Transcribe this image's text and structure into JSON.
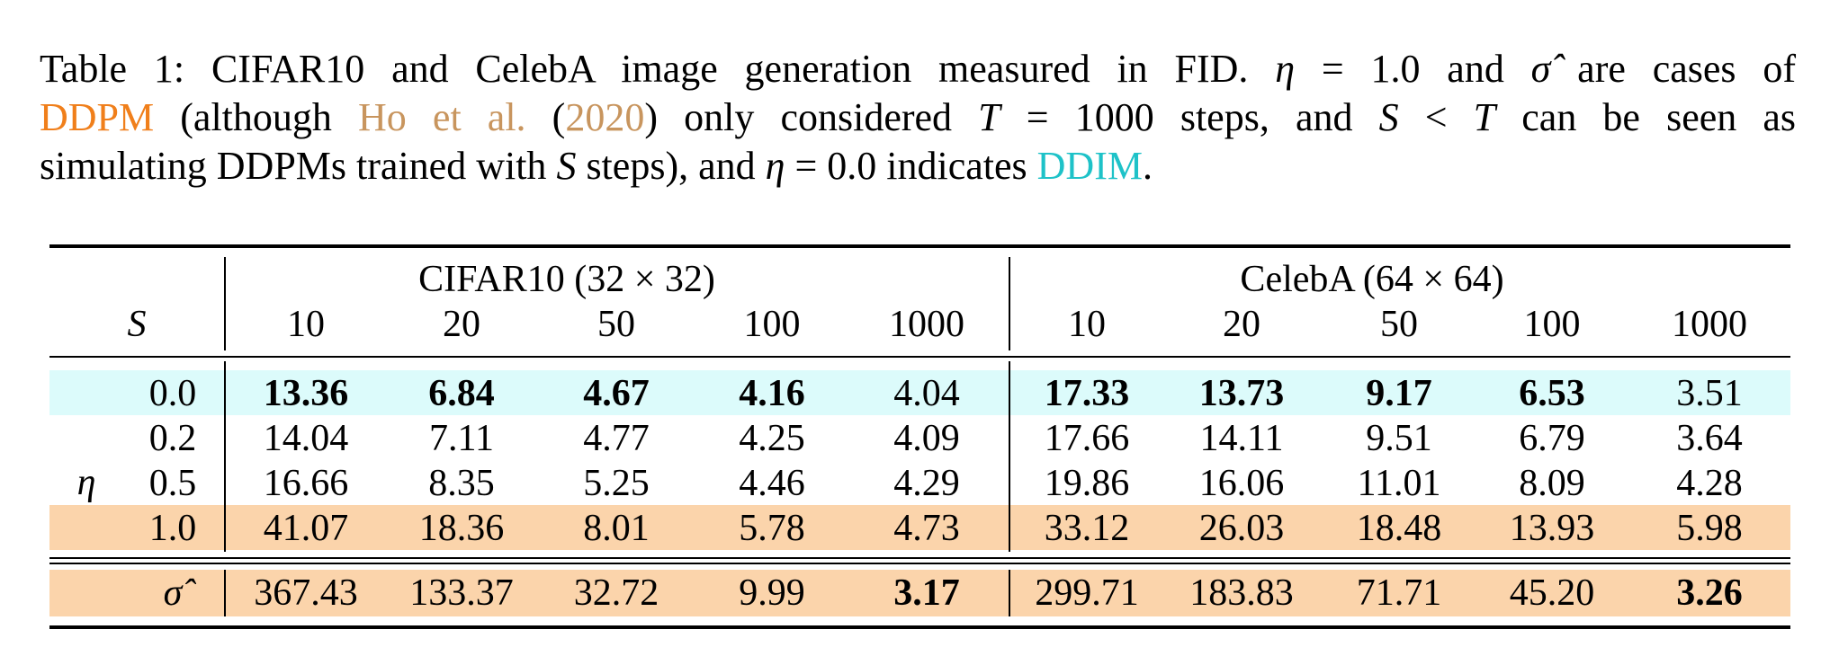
{
  "caption": {
    "l1_a": "Table 1: CIFAR10 and CelebA image generation measured in FID. ",
    "l1_eta": "η",
    "l1_b": " = 1.0 and ",
    "l1_sigma": "σ̂",
    "l1_c": " are cases of",
    "l2_ddpm": "DDPM",
    "l2_a": " (although ",
    "l2_ho": "Ho et al.",
    "l2_paren_open": " (",
    "l2_year": "2020",
    "l2_paren_close": ")",
    "l2_b": " only considered ",
    "l2_T": "T",
    "l2_c": " = 1000 steps, and ",
    "l2_S": "S",
    "l2_lt": " < ",
    "l2_T2": "T",
    "l2_d": " can be seen as",
    "l3_a": "simulating DDPMs trained with ",
    "l3_S": "S",
    "l3_b": " steps), and ",
    "l3_eta": "η",
    "l3_c": " = 0.0 indicates ",
    "l3_ddim": "DDIM",
    "l3_d": "."
  },
  "table": {
    "group_cifar": "CIFAR10 (32 × 32)",
    "group_celeba": "CelebA (64 × 64)",
    "s_label": "S",
    "eta_label": "η",
    "steps": [
      "10",
      "20",
      "50",
      "100",
      "1000",
      "10",
      "20",
      "50",
      "100",
      "1000"
    ],
    "rows": [
      {
        "label": "0.0",
        "values": [
          "13.36",
          "6.84",
          "4.67",
          "4.16",
          "4.04",
          "17.33",
          "13.73",
          "9.17",
          "6.53",
          "3.51"
        ]
      },
      {
        "label": "0.2",
        "values": [
          "14.04",
          "7.11",
          "4.77",
          "4.25",
          "4.09",
          "17.66",
          "14.11",
          "9.51",
          "6.79",
          "3.64"
        ]
      },
      {
        "label": "0.5",
        "values": [
          "16.66",
          "8.35",
          "5.25",
          "4.46",
          "4.29",
          "19.86",
          "16.06",
          "11.01",
          "8.09",
          "4.28"
        ]
      },
      {
        "label": "1.0",
        "values": [
          "41.07",
          "18.36",
          "8.01",
          "5.78",
          "4.73",
          "33.12",
          "26.03",
          "18.48",
          "13.93",
          "5.98"
        ]
      },
      {
        "label": "σ̂",
        "values": [
          "367.43",
          "133.37",
          "32.72",
          "9.99",
          "3.17",
          "299.71",
          "183.83",
          "71.71",
          "45.20",
          "3.26"
        ]
      }
    ],
    "bold_cells": [
      [
        0,
        0
      ],
      [
        0,
        1
      ],
      [
        0,
        2
      ],
      [
        0,
        3
      ],
      [
        0,
        5
      ],
      [
        0,
        6
      ],
      [
        0,
        7
      ],
      [
        0,
        8
      ],
      [
        4,
        4
      ],
      [
        4,
        9
      ]
    ],
    "colors": {
      "cyan_band": "#dcfbfb",
      "orange_band": "#fbd4ab",
      "ddpm": "#f07f1b",
      "ho": "#c8955e",
      "ddim": "#1ec2c8"
    }
  }
}
